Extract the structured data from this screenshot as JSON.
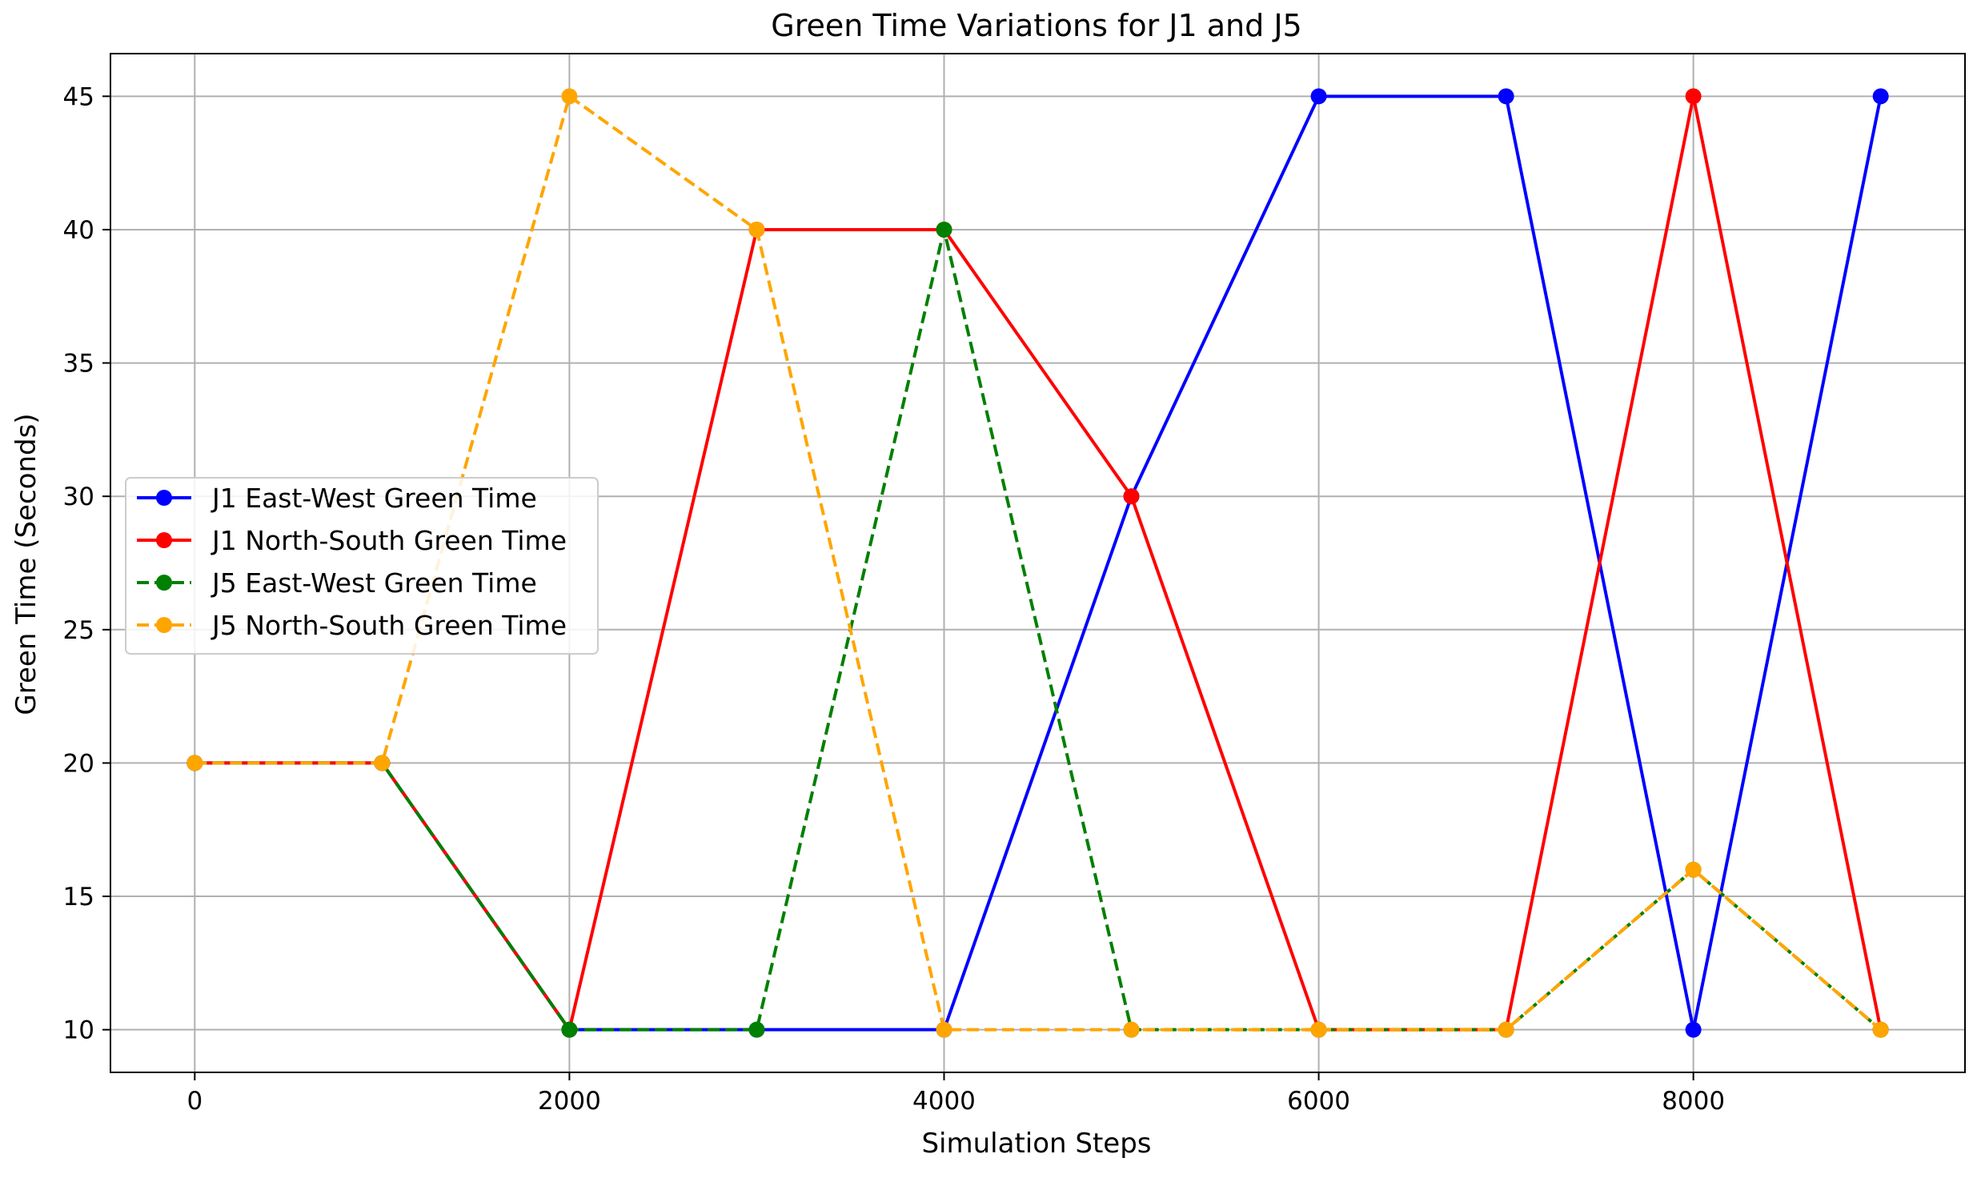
{
  "chart_data": {
    "type": "line",
    "title": "Green Time Variations for J1 and J5",
    "xlabel": "Simulation Steps",
    "ylabel": "Green Time (Seconds)",
    "x": [
      0,
      1000,
      2000,
      3000,
      4000,
      5000,
      6000,
      7000,
      8000,
      9000
    ],
    "xlim": [
      -450,
      9450
    ],
    "ylim": [
      8.4,
      46.6
    ],
    "xticks": [
      0,
      2000,
      4000,
      6000,
      8000
    ],
    "yticks": [
      10,
      15,
      20,
      25,
      30,
      35,
      40,
      45
    ],
    "grid": true,
    "legend_position": "center-left",
    "series": [
      {
        "name": "J1 East-West Green Time",
        "values": [
          20,
          20,
          10,
          10,
          10,
          30,
          45,
          45,
          10,
          45
        ],
        "color": "#0000ff",
        "dashed": false
      },
      {
        "name": "J1 North-South Green Time",
        "values": [
          20,
          20,
          10,
          40,
          40,
          30,
          10,
          10,
          45,
          10
        ],
        "color": "#ff0000",
        "dashed": false
      },
      {
        "name": "J5 East-West Green Time",
        "values": [
          20,
          20,
          10,
          10,
          40,
          10,
          10,
          10,
          16,
          10
        ],
        "color": "#008000",
        "dashed": true
      },
      {
        "name": "J5 North-South Green Time",
        "values": [
          20,
          20,
          45,
          40,
          10,
          10,
          10,
          10,
          16,
          10
        ],
        "color": "#ffa500",
        "dashed": true
      }
    ]
  }
}
